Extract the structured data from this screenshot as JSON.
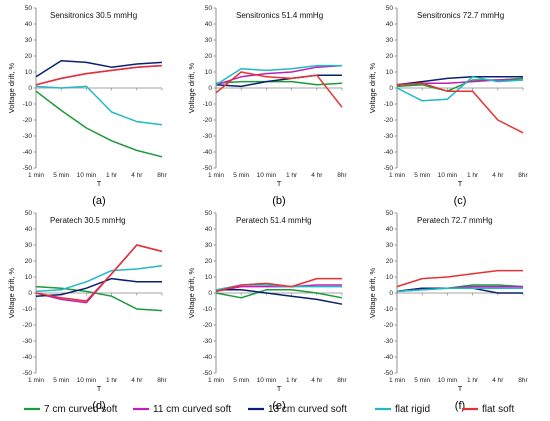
{
  "chart_data": {
    "type": "line",
    "categories": [
      "1 min",
      "5 min",
      "10 min",
      "1 hr",
      "4 hr",
      "8hr"
    ],
    "xlabel": "T",
    "ylabel": "Voltage drift, %",
    "ylim": [
      -50,
      50
    ],
    "yticks": [
      -50,
      -40,
      -30,
      -20,
      -10,
      0,
      10,
      20,
      30,
      40,
      50
    ],
    "grid": false,
    "legend_position": "bottom",
    "legend": [
      {
        "name": "7 cm curved soft",
        "color": "#1a9a3a"
      },
      {
        "name": "11 cm curved soft",
        "color": "#c01eb8"
      },
      {
        "name": "13 cm curved soft",
        "color": "#0b1f6e"
      },
      {
        "name": "flat rigid",
        "color": "#22b8c8"
      },
      {
        "name": "flat soft",
        "color": "#e63232"
      }
    ],
    "panels": [
      {
        "label": "(a)",
        "title": "Sensitronics  30.5 mmHg",
        "series": [
          {
            "name": "7 cm curved soft",
            "values": [
              -2,
              -14,
              -25,
              -33,
              -39,
              -43
            ]
          },
          {
            "name": "11 cm curved soft",
            "values": [
              2,
              6,
              9,
              11,
              13,
              14
            ]
          },
          {
            "name": "13 cm curved soft",
            "values": [
              7,
              17,
              16,
              13,
              15,
              16
            ]
          },
          {
            "name": "flat rigid",
            "values": [
              1,
              0,
              1,
              -15,
              -21,
              -23
            ]
          },
          {
            "name": "flat soft",
            "values": [
              2,
              6,
              9,
              11,
              13,
              14
            ]
          }
        ]
      },
      {
        "label": "(b)",
        "title": "Sensitronics  51.4 mmHg",
        "series": [
          {
            "name": "7 cm curved soft",
            "values": [
              3,
              4,
              4,
              4,
              2,
              3
            ]
          },
          {
            "name": "11 cm curved soft",
            "values": [
              2,
              7,
              9,
              10,
              13,
              14
            ]
          },
          {
            "name": "13 cm curved soft",
            "values": [
              2,
              1,
              4,
              6,
              8,
              8
            ]
          },
          {
            "name": "flat rigid",
            "values": [
              2,
              12,
              11,
              12,
              14,
              14
            ]
          },
          {
            "name": "flat soft",
            "values": [
              -3,
              10,
              7,
              6,
              8,
              -12
            ]
          }
        ]
      },
      {
        "label": "(c)",
        "title": "Sensitronics  72.7 mmHg",
        "series": [
          {
            "name": "7 cm curved soft",
            "values": [
              1,
              2,
              -2,
              5,
              5,
              6
            ]
          },
          {
            "name": "11 cm curved soft",
            "values": [
              2,
              3,
              3,
              4,
              5,
              5
            ]
          },
          {
            "name": "13 cm curved soft",
            "values": [
              2,
              4,
              6,
              7,
              7,
              7
            ]
          },
          {
            "name": "flat rigid",
            "values": [
              0,
              -8,
              -7,
              7,
              4,
              5
            ]
          },
          {
            "name": "flat soft",
            "values": [
              2,
              3,
              -2,
              -2,
              -20,
              -28
            ]
          }
        ]
      },
      {
        "label": "(d)",
        "title": "Peratech  30.5 mmHg",
        "series": [
          {
            "name": "7 cm curved soft",
            "values": [
              4,
              3,
              1,
              -2,
              -10,
              -11
            ]
          },
          {
            "name": "11 cm curved soft",
            "values": [
              0,
              -4,
              -6,
              12,
              30,
              26
            ]
          },
          {
            "name": "13 cm curved soft",
            "values": [
              -2,
              -1,
              3,
              9,
              7,
              7
            ]
          },
          {
            "name": "flat rigid",
            "values": [
              1,
              2,
              7,
              14,
              15,
              17
            ]
          },
          {
            "name": "flat soft",
            "values": [
              0,
              -3,
              -5,
              12,
              30,
              26
            ]
          }
        ]
      },
      {
        "label": "(e)",
        "title": "Peratech  51.4 mmHg",
        "series": [
          {
            "name": "7 cm curved soft",
            "values": [
              0,
              -3,
              2,
              2,
              0,
              -3
            ]
          },
          {
            "name": "11 cm curved soft",
            "values": [
              1,
              4,
              4,
              4,
              5,
              5
            ]
          },
          {
            "name": "13 cm curved soft",
            "values": [
              2,
              2,
              0,
              -2,
              -4,
              -7
            ]
          },
          {
            "name": "flat rigid",
            "values": [
              2,
              5,
              5,
              4,
              4,
              4
            ]
          },
          {
            "name": "flat soft",
            "values": [
              1,
              5,
              6,
              4,
              9,
              9
            ]
          }
        ]
      },
      {
        "label": "(f)",
        "title": "Peratech  72.7 mmHg",
        "series": [
          {
            "name": "7 cm curved soft",
            "values": [
              1,
              2,
              3,
              5,
              5,
              4
            ]
          },
          {
            "name": "11 cm curved soft",
            "values": [
              1,
              3,
              3,
              4,
              4,
              4
            ]
          },
          {
            "name": "13 cm curved soft",
            "values": [
              1,
              3,
              3,
              3,
              0,
              0
            ]
          },
          {
            "name": "flat rigid",
            "values": [
              1,
              2,
              3,
              3,
              3,
              3
            ]
          },
          {
            "name": "flat soft",
            "values": [
              4,
              9,
              10,
              12,
              14,
              14
            ]
          }
        ]
      }
    ]
  }
}
